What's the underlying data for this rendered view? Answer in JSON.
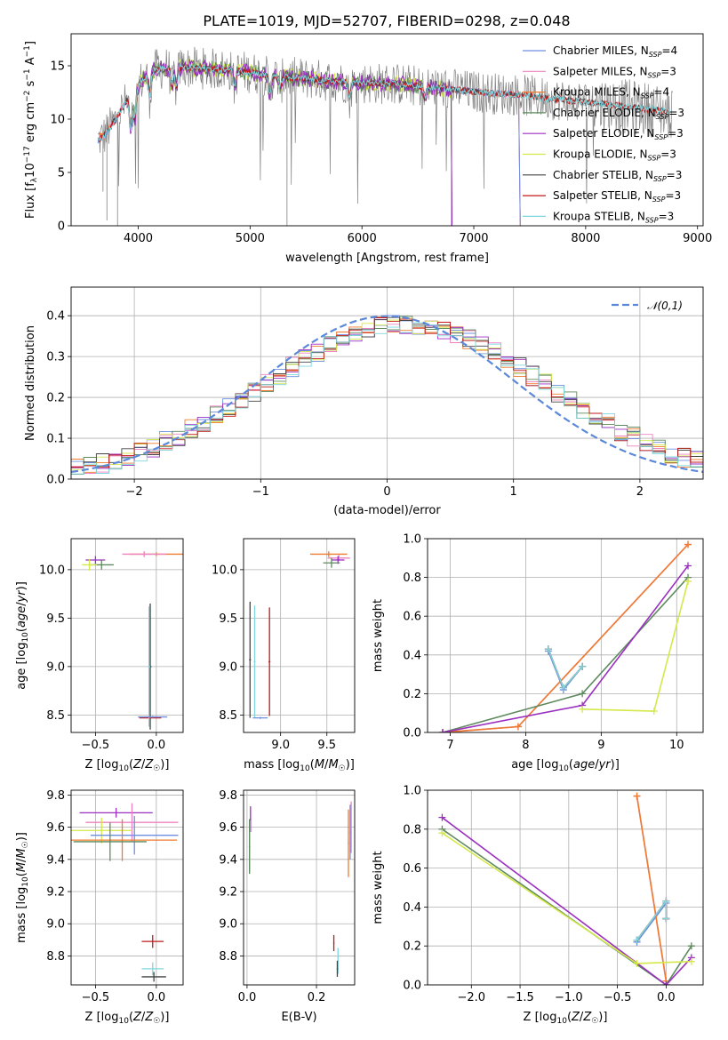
{
  "page_title": "PLATE=1019, MJD=52707, FIBERID=0298, z=0.048",
  "colors": {
    "Chabrier MILES": "#6f8fe0",
    "Salpeter MILES": "#ee82c0",
    "Kroupa MILES": "#ee7b2f",
    "Chabrier ELODIE": "#5f8a5f",
    "Salpeter ELODIE": "#9a2fc0",
    "Kroupa ELODIE": "#d4e84a",
    "Chabrier STELIB": "#444444",
    "Salpeter STELIB": "#c01818",
    "Kroupa STELIB": "#7fd6dc",
    "data": "#808080",
    "normal": "#5b88d8"
  },
  "chart_data": [
    {
      "type": "line",
      "id": "spectrum",
      "title": "PLATE=1019, MJD=52707, FIBERID=0298, z=0.048",
      "xlabel": "wavelength [Angstrom, rest frame]",
      "ylabel": "Flux [f_λ 10^-17 erg cm^-2 s^-1 A^-1]",
      "xlim": [
        3400,
        9050
      ],
      "ylim": [
        0,
        18
      ],
      "xticks": [
        4000,
        5000,
        6000,
        7000,
        8000,
        9000
      ],
      "yticks": [
        0,
        5,
        10,
        15
      ],
      "grid": false,
      "legend_position": "top-right",
      "legend": [
        "Chabrier MILES, N_SSP=4",
        "Salpeter MILES, N_SSP=3",
        "Kroupa MILES, N_SSP=4",
        "Chabrier ELODIE, N_SSP=3",
        "Salpeter ELODIE, N_SSP=3",
        "Kroupa ELODIE, N_SSP=3",
        "Chabrier STELIB, N_SSP=3",
        "Salpeter STELIB, N_SSP=3",
        "Kroupa STELIB, N_SSP=3"
      ],
      "continuum": {
        "x": [
          3640,
          3700,
          3800,
          3900,
          4000,
          4100,
          4300,
          4500,
          4800,
          5000,
          5200,
          5500,
          5800,
          6000,
          6300,
          6600,
          6900,
          7200,
          7400,
          7600,
          7900,
          8200,
          8500,
          8800
        ],
        "y": [
          8.0,
          8.5,
          10.0,
          11.8,
          13.2,
          14.5,
          14.9,
          14.8,
          14.6,
          14.4,
          14.0,
          13.8,
          13.5,
          13.4,
          13.3,
          13.0,
          12.7,
          12.4,
          12.3,
          12.0,
          11.7,
          11.4,
          11.0,
          10.6
        ]
      }
    },
    {
      "type": "bar",
      "id": "residual-histogram",
      "xlabel": "(data-model)/error",
      "ylabel": "Normed distribution",
      "xlim": [
        -2.5,
        2.5
      ],
      "ylim": [
        0,
        0.47
      ],
      "xticks": [
        -2,
        -1,
        0,
        1,
        2
      ],
      "yticks": [
        0.0,
        0.1,
        0.2,
        0.3,
        0.4
      ],
      "grid": true,
      "bin_width": 0.1,
      "legend": [
        "𝒩(0,1)"
      ],
      "legend_position": "top-right",
      "normal": {
        "mean": 0,
        "sigma": 1
      }
    },
    {
      "type": "scatter",
      "id": "age-vs-Z",
      "xlabel": "Z [log10(Z/Z☉)]",
      "ylabel": "age [log10(age/yr)]",
      "xlim": [
        -0.7,
        0.22
      ],
      "ylim": [
        8.32,
        10.32
      ],
      "xticks": [
        -0.5,
        0.0
      ],
      "yticks": [
        8.5,
        9.0,
        9.5,
        10.0
      ],
      "grid": true,
      "points": [
        {
          "series": "Kroupa MILES",
          "x": 0.0,
          "y": 10.16,
          "xerr": 0.22,
          "yerr": 0.02
        },
        {
          "series": "Salpeter MILES",
          "x": -0.1,
          "y": 10.16,
          "xerr": 0.18,
          "yerr": 0.03
        },
        {
          "series": "Salpeter ELODIE",
          "x": -0.5,
          "y": 10.1,
          "xerr": 0.08,
          "yerr": 0.04
        },
        {
          "series": "Chabrier ELODIE",
          "x": -0.45,
          "y": 10.05,
          "xerr": 0.1,
          "yerr": 0.05
        },
        {
          "series": "Kroupa ELODIE",
          "x": -0.55,
          "y": 10.05,
          "xerr": 0.06,
          "yerr": 0.06
        },
        {
          "series": "Chabrier STELIB",
          "x": -0.05,
          "y": 9.0,
          "xerr": 0.01,
          "yerr": 0.65
        },
        {
          "series": "Salpeter STELIB",
          "x": -0.05,
          "y": 8.47,
          "xerr": 0.09,
          "yerr": 0.01
        },
        {
          "series": "Kroupa STELIB",
          "x": -0.06,
          "y": 9.0,
          "xerr": 0.01,
          "yerr": 0.62
        },
        {
          "series": "Chabrier MILES",
          "x": -0.03,
          "y": 8.48,
          "xerr": 0.12,
          "yerr": 0.01
        }
      ]
    },
    {
      "type": "scatter",
      "id": "age-vs-mass",
      "xlabel": "mass [log10(M/M☉)]",
      "ylabel": "",
      "xlim": [
        8.6,
        9.8
      ],
      "ylim": [
        8.32,
        10.32
      ],
      "xticks": [
        9.0,
        9.5
      ],
      "yticks": [
        8.5,
        9.0,
        9.5,
        10.0
      ],
      "grid": true,
      "points": [
        {
          "series": "Kroupa MILES",
          "x": 9.52,
          "y": 10.16,
          "xerr": 0.2,
          "yerr": 0.03
        },
        {
          "series": "Salpeter MILES",
          "x": 9.63,
          "y": 10.12,
          "xerr": 0.12,
          "yerr": 0.03
        },
        {
          "series": "Salpeter ELODIE",
          "x": 9.62,
          "y": 10.1,
          "xerr": 0.07,
          "yerr": 0.04
        },
        {
          "series": "Chabrier ELODIE",
          "x": 9.55,
          "y": 10.07,
          "xerr": 0.09,
          "yerr": 0.05
        },
        {
          "series": "Chabrier STELIB",
          "x": 8.67,
          "y": 9.07,
          "xerr": 0.01,
          "yerr": 0.6
        },
        {
          "series": "Kroupa STELIB",
          "x": 8.72,
          "y": 9.05,
          "xerr": 0.01,
          "yerr": 0.58
        },
        {
          "series": "Salpeter STELIB",
          "x": 8.88,
          "y": 9.05,
          "xerr": 0.01,
          "yerr": 0.56
        },
        {
          "series": "Chabrier MILES",
          "x": 8.78,
          "y": 8.47,
          "xerr": 0.08,
          "yerr": 0.01
        }
      ]
    },
    {
      "type": "line",
      "id": "mass-weight-vs-age",
      "xlabel": "age [log10(age/yr)]",
      "ylabel": "mass weight",
      "xlim": [
        6.7,
        10.35
      ],
      "ylim": [
        0,
        1.0
      ],
      "xticks": [
        7,
        8,
        9,
        10
      ],
      "yticks": [
        0.0,
        0.2,
        0.4,
        0.6,
        0.8,
        1.0
      ],
      "grid": true,
      "series": [
        {
          "name": "Chabrier MILES",
          "x": [
            8.3,
            8.5,
            8.75
          ],
          "y": [
            0.42,
            0.22,
            0.34
          ]
        },
        {
          "name": "Salpeter MILES",
          "x": [
            6.9,
            7.9,
            10.15
          ],
          "y": [
            0.0,
            0.03,
            0.97
          ]
        },
        {
          "name": "Kroupa MILES",
          "x": [
            6.9,
            7.9,
            10.15
          ],
          "y": [
            0.0,
            0.03,
            0.97
          ]
        },
        {
          "name": "Chabrier ELODIE",
          "x": [
            6.9,
            8.75,
            10.15
          ],
          "y": [
            0.0,
            0.2,
            0.8
          ]
        },
        {
          "name": "Salpeter ELODIE",
          "x": [
            6.9,
            8.75,
            10.15
          ],
          "y": [
            0.0,
            0.14,
            0.86
          ]
        },
        {
          "name": "Kroupa ELODIE",
          "x": [
            8.75,
            9.7,
            10.15
          ],
          "y": [
            0.12,
            0.11,
            0.78
          ]
        },
        {
          "name": "Chabrier STELIB",
          "x": [
            8.3,
            8.5,
            8.75
          ],
          "y": [
            0.43,
            0.23,
            0.34
          ]
        },
        {
          "name": "Salpeter STELIB",
          "x": [
            8.3,
            8.5,
            8.75
          ],
          "y": [
            0.43,
            0.23,
            0.34
          ]
        },
        {
          "name": "Kroupa STELIB",
          "x": [
            8.3,
            8.5,
            8.75
          ],
          "y": [
            0.43,
            0.23,
            0.34
          ]
        }
      ]
    },
    {
      "type": "scatter",
      "id": "mass-vs-Z",
      "xlabel": "Z [log10(Z/Z☉)]",
      "ylabel": "mass [log10(M/M☉)]",
      "xlim": [
        -0.7,
        0.22
      ],
      "ylim": [
        8.62,
        9.83
      ],
      "xticks": [
        -0.5,
        0.0
      ],
      "yticks": [
        8.8,
        9.0,
        9.2,
        9.4,
        9.6,
        9.8
      ],
      "grid": true,
      "points": [
        {
          "series": "Salpeter ELODIE",
          "x": -0.33,
          "y": 9.69,
          "xerr": 0.3,
          "yerr": 0.03
        },
        {
          "series": "Salpeter MILES",
          "x": -0.2,
          "y": 9.63,
          "xerr": 0.38,
          "yerr": 0.12
        },
        {
          "series": "Kroupa ELODIE",
          "x": -0.45,
          "y": 9.58,
          "xerr": 0.25,
          "yerr": 0.08
        },
        {
          "series": "Chabrier MILES",
          "x": -0.18,
          "y": 9.55,
          "xerr": 0.36,
          "yerr": 0.12
        },
        {
          "series": "Kroupa MILES",
          "x": -0.28,
          "y": 9.52,
          "xerr": 0.45,
          "yerr": 0.13
        },
        {
          "series": "Chabrier ELODIE",
          "x": -0.38,
          "y": 9.51,
          "xerr": 0.3,
          "yerr": 0.12
        },
        {
          "series": "Salpeter STELIB",
          "x": -0.03,
          "y": 8.89,
          "xerr": 0.09,
          "yerr": 0.04
        },
        {
          "series": "Kroupa STELIB",
          "x": -0.03,
          "y": 8.72,
          "xerr": 0.09,
          "yerr": 0.04
        },
        {
          "series": "Chabrier STELIB",
          "x": -0.02,
          "y": 8.67,
          "xerr": 0.1,
          "yerr": 0.03
        }
      ]
    },
    {
      "type": "scatter",
      "id": "mass-vs-EBV",
      "xlabel": "E(B-V)",
      "ylabel": "",
      "xlim": [
        -0.01,
        0.31
      ],
      "ylim": [
        8.62,
        9.83
      ],
      "xticks": [
        0.0,
        0.2
      ],
      "yticks": [
        8.8,
        9.0,
        9.2,
        9.4,
        9.6,
        9.8
      ],
      "grid": true,
      "points": [
        {
          "series": "Salpeter ELODIE",
          "x": 0.01,
          "y": 9.65,
          "xerr": 0.0,
          "yerr": 0.08
        },
        {
          "series": "Kroupa ELODIE",
          "x": 0.008,
          "y": 9.48,
          "xerr": 0.0,
          "yerr": 0.16
        },
        {
          "series": "Chabrier ELODIE",
          "x": 0.007,
          "y": 9.48,
          "xerr": 0.0,
          "yerr": 0.17
        },
        {
          "series": "Salpeter MILES",
          "x": 0.3,
          "y": 9.6,
          "xerr": 0.0,
          "yerr": 0.16
        },
        {
          "series": "Chabrier MILES",
          "x": 0.297,
          "y": 9.57,
          "xerr": 0.0,
          "yerr": 0.17
        },
        {
          "series": "Kroupa MILES",
          "x": 0.292,
          "y": 9.5,
          "xerr": 0.0,
          "yerr": 0.21
        },
        {
          "series": "Salpeter STELIB",
          "x": 0.25,
          "y": 8.88,
          "xerr": 0.0,
          "yerr": 0.05
        },
        {
          "series": "Kroupa STELIB",
          "x": 0.262,
          "y": 8.77,
          "xerr": 0.0,
          "yerr": 0.08
        },
        {
          "series": "Chabrier STELIB",
          "x": 0.26,
          "y": 8.72,
          "xerr": 0.0,
          "yerr": 0.05
        }
      ]
    },
    {
      "type": "line",
      "id": "mass-weight-vs-Z",
      "xlabel": "Z [log10(Z/Z☉)]",
      "ylabel": "mass weight",
      "xlim": [
        -2.45,
        0.38
      ],
      "ylim": [
        0,
        1.0
      ],
      "xticks": [
        -2.0,
        -1.5,
        -1.0,
        -0.5,
        0.0
      ],
      "yticks": [
        0.0,
        0.2,
        0.4,
        0.6,
        0.8,
        1.0
      ],
      "grid": true,
      "series": [
        {
          "name": "Chabrier MILES",
          "x": [
            -0.3,
            0.0,
            0.0
          ],
          "y": [
            0.22,
            0.42,
            0.34
          ]
        },
        {
          "name": "Salpeter MILES",
          "x": [
            -0.3,
            0.0
          ],
          "y": [
            0.97,
            0.02
          ]
        },
        {
          "name": "Kroupa MILES",
          "x": [
            -0.3,
            0.0
          ],
          "y": [
            0.97,
            0.02
          ]
        },
        {
          "name": "Chabrier ELODIE",
          "x": [
            -2.3,
            0.0,
            0.26
          ],
          "y": [
            0.8,
            0.0,
            0.2
          ]
        },
        {
          "name": "Salpeter ELODIE",
          "x": [
            -2.3,
            0.0,
            0.26
          ],
          "y": [
            0.86,
            0.0,
            0.14
          ]
        },
        {
          "name": "Kroupa ELODIE",
          "x": [
            -2.3,
            -0.3,
            0.26
          ],
          "y": [
            0.78,
            0.11,
            0.12
          ]
        },
        {
          "name": "Chabrier STELIB",
          "x": [
            -0.3,
            0.0,
            0.0
          ],
          "y": [
            0.23,
            0.43,
            0.34
          ]
        },
        {
          "name": "Salpeter STELIB",
          "x": [
            -0.3,
            0.0,
            0.0
          ],
          "y": [
            0.23,
            0.43,
            0.34
          ]
        },
        {
          "name": "Kroupa STELIB",
          "x": [
            -0.3,
            0.0,
            0.0
          ],
          "y": [
            0.23,
            0.43,
            0.34
          ]
        }
      ]
    }
  ]
}
